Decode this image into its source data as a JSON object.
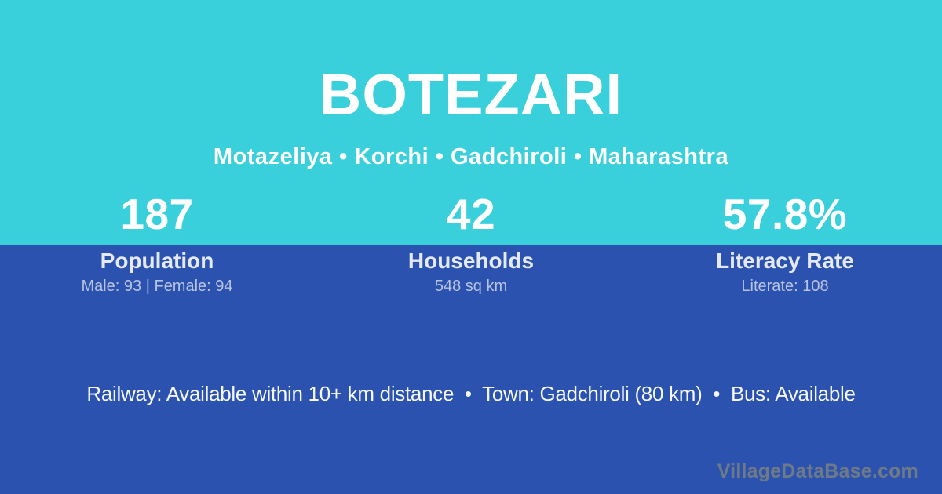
{
  "page": {
    "title": "BOTEZARI",
    "subtitle": "Motazeliya • Korchi • Gadchiroli • Maharashtra"
  },
  "stats": [
    {
      "value": "187",
      "label": "Population",
      "detail": "Male: 93 | Female: 94"
    },
    {
      "value": "42",
      "label": "Households",
      "detail": "548 sq km"
    },
    {
      "value": "57.8%",
      "label": "Literacy Rate",
      "detail": "Literate: 108"
    }
  ],
  "info_line": "Railway: Available within 10+ km distance  •  Town: Gadchiroli (80 km)  •  Bus: Available",
  "watermark": "VillageDataBase.com",
  "colors": {
    "top_background": "#39d0dc",
    "bottom_background": "#2a52ae",
    "title_text": "#ffffff",
    "stat_label_text": "#e4e9f5",
    "stat_detail_text": "#b8c3e2",
    "watermark_text": "#6f7a88"
  }
}
